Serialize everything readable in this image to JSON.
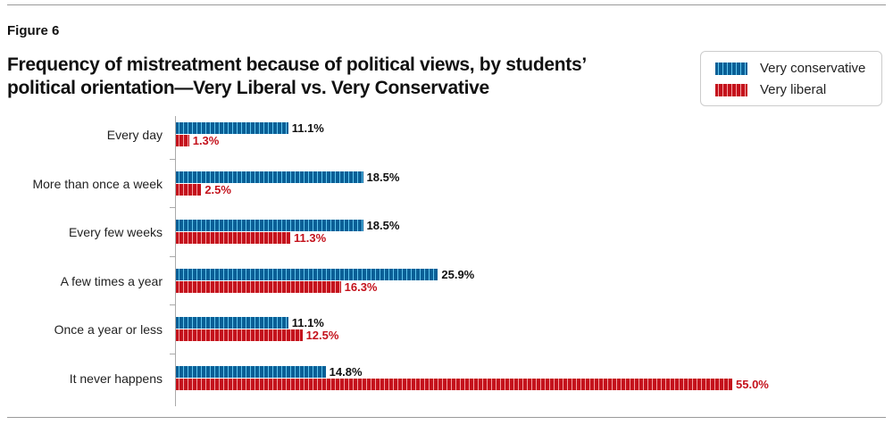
{
  "figure_label": "Figure 6",
  "chart_data": {
    "type": "bar",
    "orientation": "horizontal",
    "title": "Frequency of mistreatment because of political views, by students’ political orientation—Very Liberal vs. Very Conservative",
    "categories": [
      "Every day",
      "More than once a week",
      "Every few weeks",
      "A few times a year",
      "Once a year or less",
      "It never happens"
    ],
    "series": [
      {
        "name": "Very conservative",
        "color": "#0a5f96",
        "label_color": "#111111",
        "values": [
          11.1,
          18.5,
          18.5,
          25.9,
          11.1,
          14.8
        ],
        "labels": [
          "11.1%",
          "18.5%",
          "18.5%",
          "25.9%",
          "11.1%",
          "14.8%"
        ]
      },
      {
        "name": "Very liberal",
        "color": "#c4121c",
        "label_color": "#c4121c",
        "values": [
          1.3,
          2.5,
          11.3,
          16.3,
          12.5,
          55.0
        ],
        "labels": [
          "1.3%",
          "2.5%",
          "11.3%",
          "16.3%",
          "12.5%",
          "55.0%"
        ]
      }
    ],
    "xlim": [
      0,
      55
    ],
    "legend_position": "top-right",
    "grid": false
  }
}
